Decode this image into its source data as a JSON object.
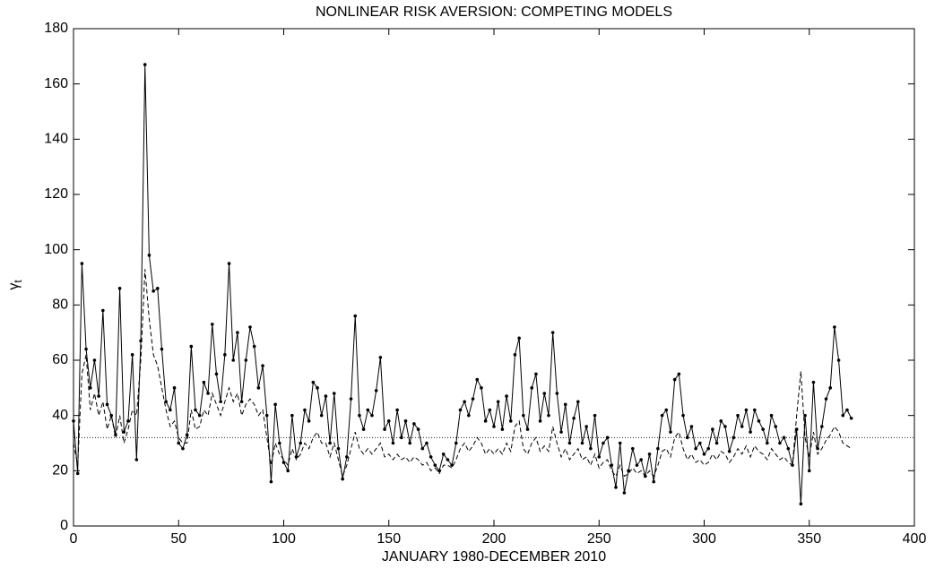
{
  "chart_data": {
    "type": "line",
    "title": "NONLINEAR RISK AVERSION: COMPETING MODELS",
    "xlabel": "JANUARY 1980-DECEMBER 2010",
    "ylabel": "γ",
    "ylabel_sub": "t",
    "xlim": [
      0,
      400
    ],
    "xticks": [
      0,
      50,
      100,
      150,
      200,
      250,
      300,
      350,
      400
    ],
    "ylim": [
      0,
      180
    ],
    "yticks": [
      0,
      20,
      40,
      60,
      80,
      100,
      120,
      140,
      160,
      180
    ],
    "hline": 32,
    "x": [
      0,
      2,
      4,
      6,
      8,
      10,
      12,
      14,
      16,
      18,
      20,
      22,
      24,
      26,
      28,
      30,
      32,
      34,
      36,
      38,
      40,
      42,
      44,
      46,
      48,
      50,
      52,
      54,
      56,
      58,
      60,
      62,
      64,
      66,
      68,
      70,
      72,
      74,
      76,
      78,
      80,
      82,
      84,
      86,
      88,
      90,
      92,
      94,
      96,
      98,
      100,
      102,
      104,
      106,
      108,
      110,
      112,
      114,
      116,
      118,
      120,
      122,
      124,
      126,
      128,
      130,
      132,
      134,
      136,
      138,
      140,
      142,
      144,
      146,
      148,
      150,
      152,
      154,
      156,
      158,
      160,
      162,
      164,
      166,
      168,
      170,
      172,
      174,
      176,
      178,
      180,
      182,
      184,
      186,
      188,
      190,
      192,
      194,
      196,
      198,
      200,
      202,
      204,
      206,
      208,
      210,
      212,
      214,
      216,
      218,
      220,
      222,
      224,
      226,
      228,
      230,
      232,
      234,
      236,
      238,
      240,
      242,
      244,
      246,
      248,
      250,
      252,
      254,
      256,
      258,
      260,
      262,
      264,
      266,
      268,
      270,
      272,
      274,
      276,
      278,
      280,
      282,
      284,
      286,
      288,
      290,
      292,
      294,
      296,
      298,
      300,
      302,
      304,
      306,
      308,
      310,
      312,
      314,
      316,
      318,
      320,
      322,
      324,
      326,
      328,
      330,
      332,
      334,
      336,
      338,
      340,
      342,
      344,
      346,
      348,
      350,
      352,
      354,
      356,
      358,
      360,
      362,
      364,
      366,
      368,
      370
    ],
    "series": [
      {
        "color": "#000000",
        "style": "solid",
        "markers": true,
        "values": [
          38,
          19,
          95,
          64,
          50,
          60,
          47,
          78,
          44,
          40,
          33,
          86,
          34,
          38,
          62,
          24,
          67,
          167,
          98,
          85,
          86,
          64,
          45,
          42,
          50,
          30,
          28,
          33,
          65,
          42,
          40,
          52,
          48,
          73,
          55,
          45,
          62,
          95,
          60,
          70,
          45,
          60,
          72,
          65,
          50,
          58,
          40,
          16,
          44,
          30,
          23,
          20,
          40,
          25,
          30,
          42,
          38,
          52,
          50,
          40,
          47,
          30,
          48,
          28,
          17,
          25,
          46,
          76,
          40,
          35,
          42,
          40,
          49,
          61,
          35,
          38,
          30,
          42,
          32,
          38,
          30,
          37,
          35,
          28,
          30,
          25,
          22,
          20,
          26,
          24,
          22,
          30,
          42,
          45,
          40,
          46,
          53,
          50,
          38,
          42,
          36,
          45,
          35,
          47,
          38,
          62,
          68,
          40,
          35,
          50,
          55,
          38,
          48,
          40,
          70,
          48,
          34,
          44,
          30,
          39,
          45,
          30,
          36,
          28,
          40,
          25,
          30,
          32,
          22,
          14,
          30,
          12,
          20,
          28,
          22,
          24,
          18,
          26,
          16,
          28,
          40,
          42,
          34,
          53,
          55,
          40,
          32,
          36,
          28,
          30,
          26,
          28,
          35,
          30,
          38,
          36,
          27,
          32,
          40,
          36,
          42,
          34,
          42,
          38,
          35,
          30,
          40,
          36,
          30,
          32,
          28,
          22,
          35,
          8,
          40,
          20,
          52,
          28,
          36,
          46,
          50,
          72,
          60,
          40,
          42,
          39
        ]
      },
      {
        "color": "#000000",
        "style": "dashed",
        "markers": false,
        "values": [
          30,
          22,
          55,
          62,
          42,
          48,
          40,
          45,
          35,
          40,
          32,
          40,
          30,
          35,
          42,
          40,
          60,
          93,
          75,
          62,
          58,
          50,
          42,
          36,
          38,
          32,
          30,
          30,
          42,
          35,
          36,
          42,
          40,
          48,
          44,
          40,
          45,
          50,
          45,
          48,
          40,
          44,
          46,
          44,
          40,
          42,
          32,
          22,
          30,
          26,
          24,
          22,
          28,
          24,
          26,
          30,
          28,
          32,
          34,
          30,
          30,
          25,
          30,
          24,
          18,
          22,
          28,
          34,
          28,
          26,
          28,
          26,
          28,
          30,
          25,
          26,
          24,
          26,
          24,
          25,
          23,
          25,
          24,
          22,
          23,
          20,
          21,
          19,
          22,
          22,
          21,
          24,
          28,
          30,
          27,
          29,
          32,
          30,
          26,
          28,
          26,
          28,
          26,
          30,
          27,
          36,
          38,
          28,
          26,
          30,
          32,
          27,
          29,
          27,
          36,
          30,
          25,
          28,
          24,
          26,
          28,
          24,
          25,
          22,
          26,
          21,
          23,
          24,
          20,
          18,
          22,
          18,
          19,
          21,
          19,
          20,
          18,
          20,
          18,
          22,
          27,
          28,
          25,
          32,
          34,
          28,
          24,
          26,
          23,
          24,
          22,
          23,
          26,
          24,
          27,
          26,
          23,
          25,
          28,
          26,
          29,
          25,
          29,
          27,
          26,
          24,
          28,
          26,
          24,
          25,
          23,
          22,
          40,
          56,
          32,
          25,
          34,
          26,
          28,
          31,
          33,
          36,
          34,
          30,
          29,
          28
        ]
      }
    ]
  }
}
